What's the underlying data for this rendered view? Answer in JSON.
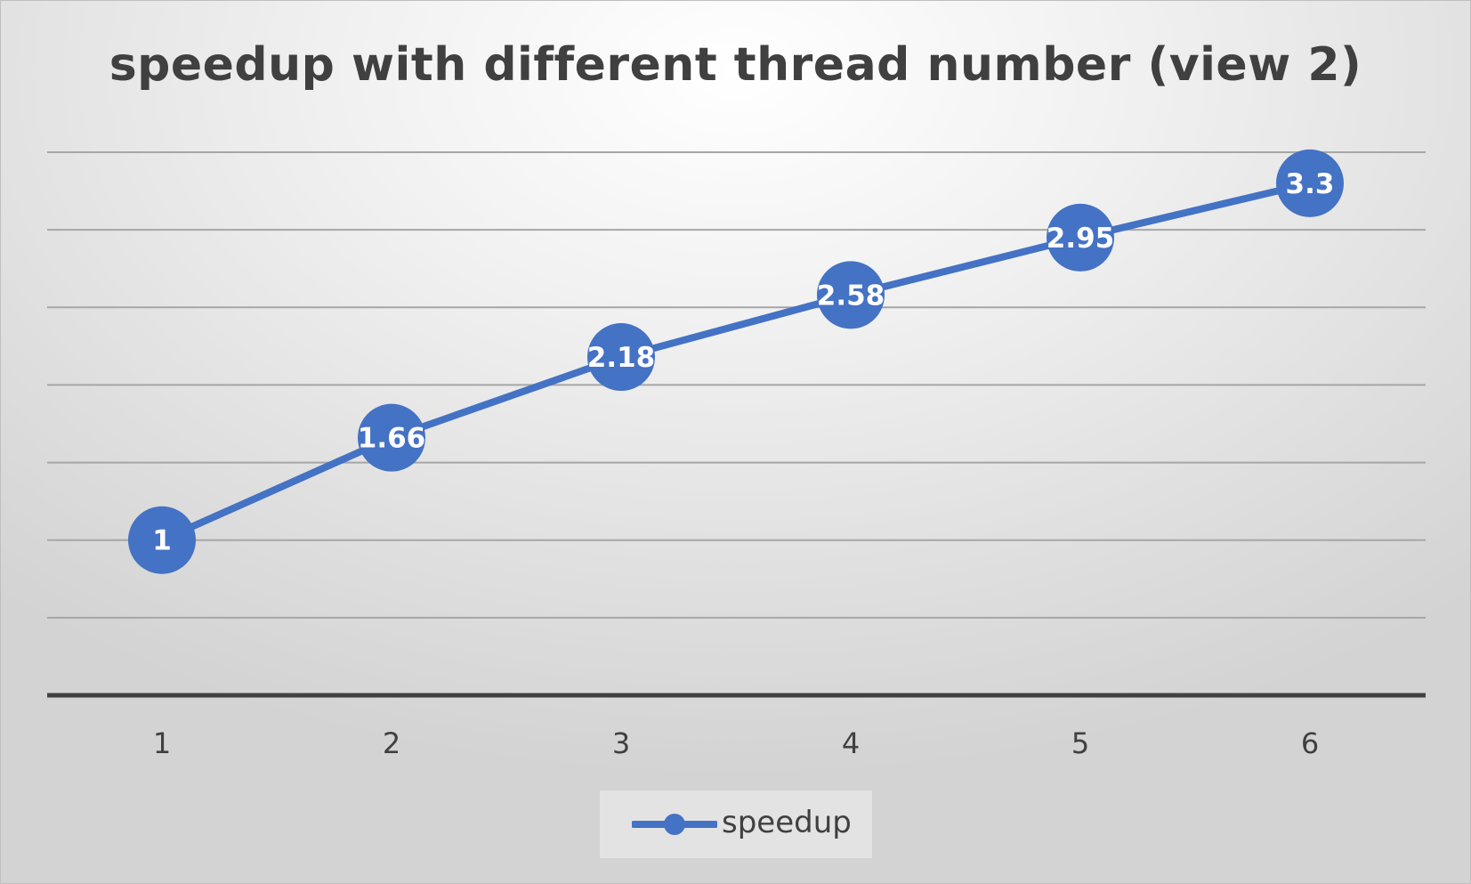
{
  "chart_data": {
    "type": "line",
    "title": "speedup with different thread number (view 2)",
    "xlabel": "",
    "ylabel": "",
    "categories": [
      "1",
      "2",
      "3",
      "4",
      "5",
      "6"
    ],
    "series": [
      {
        "name": "speedup",
        "values": [
          1,
          1.66,
          2.18,
          2.58,
          2.95,
          3.3
        ],
        "labels": [
          "1",
          "1.66",
          "2.18",
          "2.58",
          "2.95",
          "3.3"
        ],
        "color": "#4472c4"
      }
    ],
    "ylim": [
      0,
      3.5
    ],
    "y_gridline_step": 0.5,
    "y_tick_labels_shown": false,
    "grid": true,
    "legend": "bottom",
    "data_labels": "on-markers",
    "colors": {
      "series": "#4472c4",
      "label_text": "#ffffff",
      "gridline": "#a6a6a6",
      "axis_line": "#404040",
      "tick_text": "#404040",
      "title_text": "#404040",
      "legend_bg": "#e3e3e3"
    }
  }
}
